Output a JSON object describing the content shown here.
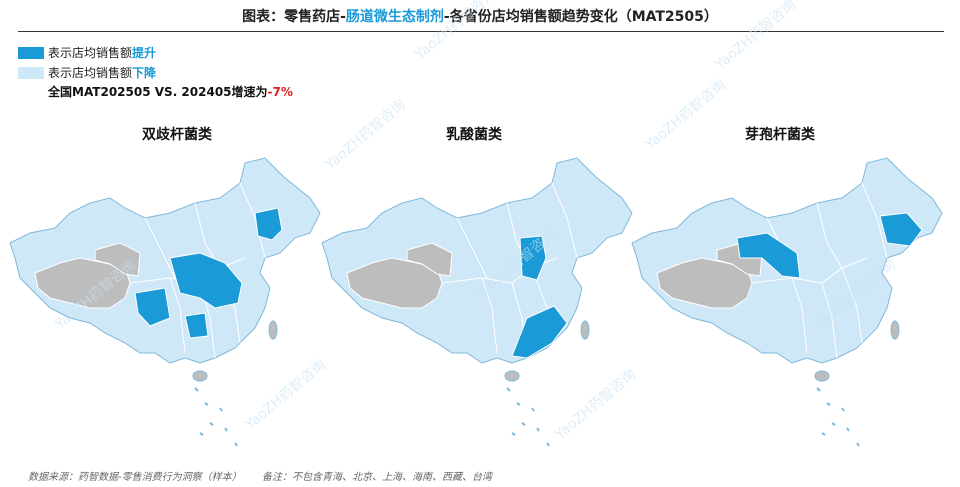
{
  "header": {
    "title_prefix": "图表：零售药店-",
    "title_highlight": "肠道微生态制剂",
    "title_suffix": "-各省份店均销售额趋势变化（MAT2505）"
  },
  "legend": [
    {
      "text": "表示店均销售额",
      "highlight": "提升"
    },
    {
      "text": "表示店均销售额",
      "highlight": "下降"
    }
  ],
  "note": {
    "text": "全国MAT202505 VS. 202405增速为",
    "value": "-7%"
  },
  "maps": [
    {
      "title": "双歧杆菌类"
    },
    {
      "title": "乳酸菌类"
    },
    {
      "title": "芽孢杆菌类"
    }
  ],
  "watermark": "YaoZH药智咨询",
  "footer": {
    "source": "数据来源：药智数据-零售消费行为洞察（样本）",
    "remark": "备注：不包含青海、北京、上海、海南、西藏、台湾"
  }
}
